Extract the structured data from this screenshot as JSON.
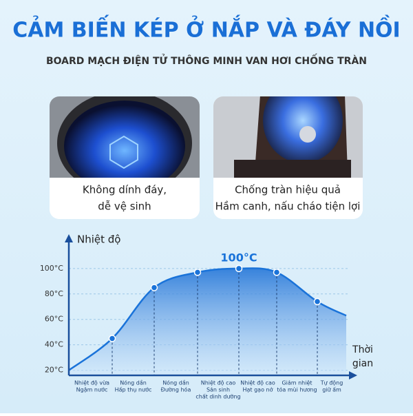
{
  "header": {
    "title": "CẢM BIẾN KÉP Ở NẮP VÀ ĐÁY NỒI",
    "subtitle": "BOARD MẠCH ĐIỆN TỬ THÔNG MINH VAN HƠI CHỐNG TRÀN"
  },
  "cards": [
    {
      "lines": [
        "Không dính đáy,",
        "dễ vệ sinh"
      ]
    },
    {
      "lines": [
        "Chống tràn hiệu quả",
        "Hầm canh, nấu cháo tiện lợi"
      ]
    }
  ],
  "chart_data": {
    "type": "line",
    "y_label": "Nhiệt độ",
    "x_label": [
      "Thời",
      "gian"
    ],
    "annotation": "100°C",
    "categories": [
      [
        "Nhiệt độ vừa",
        "Ngậm nước"
      ],
      [
        "Nóng dần",
        "Hấp thụ nước"
      ],
      [
        "Nóng dần",
        "Đường hóa"
      ],
      [
        "Nhiệt độ cao",
        "Sản sinh",
        "chất dinh dưỡng"
      ],
      [
        "Nhiệt độ cao",
        "Hạt gạo nở"
      ],
      [
        "Giảm nhiệt",
        "tỏa mùi hương"
      ],
      [
        "Tự động",
        "giữ ấm"
      ]
    ],
    "values": [
      45,
      85,
      97,
      100,
      97,
      74,
      63
    ],
    "color": "#1a73d9",
    "ylim": [
      16,
      127
    ],
    "yticks": [
      {
        "value": 20,
        "label": "20°C"
      },
      {
        "value": 40,
        "label": "40°C"
      },
      {
        "value": 60,
        "label": "60°C"
      },
      {
        "value": 80,
        "label": "80°C"
      },
      {
        "value": 100,
        "label": "100°C"
      }
    ],
    "grid": true
  }
}
